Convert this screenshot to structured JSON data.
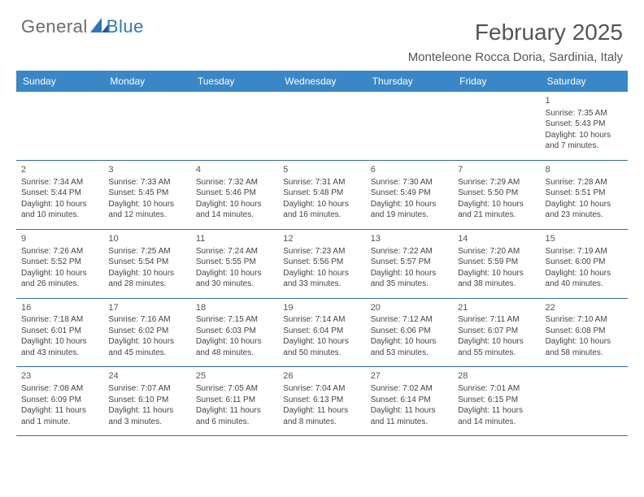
{
  "logo": {
    "part1": "General",
    "part2": "Blue"
  },
  "header": {
    "month": "February 2025",
    "location": "Monteleone Rocca Doria, Sardinia, Italy"
  },
  "weekdays": [
    "Sunday",
    "Monday",
    "Tuesday",
    "Wednesday",
    "Thursday",
    "Friday",
    "Saturday"
  ],
  "colors": {
    "header_bg": "#3a87c8",
    "row_border": "#3a6a9a",
    "text": "#444"
  },
  "calendar": {
    "type": "table",
    "rows": [
      [
        null,
        null,
        null,
        null,
        null,
        null,
        {
          "d": "1",
          "sr": "7:35 AM",
          "ss": "5:43 PM",
          "dl": "10 hours and 7 minutes."
        }
      ],
      [
        {
          "d": "2",
          "sr": "7:34 AM",
          "ss": "5:44 PM",
          "dl": "10 hours and 10 minutes."
        },
        {
          "d": "3",
          "sr": "7:33 AM",
          "ss": "5:45 PM",
          "dl": "10 hours and 12 minutes."
        },
        {
          "d": "4",
          "sr": "7:32 AM",
          "ss": "5:46 PM",
          "dl": "10 hours and 14 minutes."
        },
        {
          "d": "5",
          "sr": "7:31 AM",
          "ss": "5:48 PM",
          "dl": "10 hours and 16 minutes."
        },
        {
          "d": "6",
          "sr": "7:30 AM",
          "ss": "5:49 PM",
          "dl": "10 hours and 19 minutes."
        },
        {
          "d": "7",
          "sr": "7:29 AM",
          "ss": "5:50 PM",
          "dl": "10 hours and 21 minutes."
        },
        {
          "d": "8",
          "sr": "7:28 AM",
          "ss": "5:51 PM",
          "dl": "10 hours and 23 minutes."
        }
      ],
      [
        {
          "d": "9",
          "sr": "7:26 AM",
          "ss": "5:52 PM",
          "dl": "10 hours and 26 minutes."
        },
        {
          "d": "10",
          "sr": "7:25 AM",
          "ss": "5:54 PM",
          "dl": "10 hours and 28 minutes."
        },
        {
          "d": "11",
          "sr": "7:24 AM",
          "ss": "5:55 PM",
          "dl": "10 hours and 30 minutes."
        },
        {
          "d": "12",
          "sr": "7:23 AM",
          "ss": "5:56 PM",
          "dl": "10 hours and 33 minutes."
        },
        {
          "d": "13",
          "sr": "7:22 AM",
          "ss": "5:57 PM",
          "dl": "10 hours and 35 minutes."
        },
        {
          "d": "14",
          "sr": "7:20 AM",
          "ss": "5:59 PM",
          "dl": "10 hours and 38 minutes."
        },
        {
          "d": "15",
          "sr": "7:19 AM",
          "ss": "6:00 PM",
          "dl": "10 hours and 40 minutes."
        }
      ],
      [
        {
          "d": "16",
          "sr": "7:18 AM",
          "ss": "6:01 PM",
          "dl": "10 hours and 43 minutes."
        },
        {
          "d": "17",
          "sr": "7:16 AM",
          "ss": "6:02 PM",
          "dl": "10 hours and 45 minutes."
        },
        {
          "d": "18",
          "sr": "7:15 AM",
          "ss": "6:03 PM",
          "dl": "10 hours and 48 minutes."
        },
        {
          "d": "19",
          "sr": "7:14 AM",
          "ss": "6:04 PM",
          "dl": "10 hours and 50 minutes."
        },
        {
          "d": "20",
          "sr": "7:12 AM",
          "ss": "6:06 PM",
          "dl": "10 hours and 53 minutes."
        },
        {
          "d": "21",
          "sr": "7:11 AM",
          "ss": "6:07 PM",
          "dl": "10 hours and 55 minutes."
        },
        {
          "d": "22",
          "sr": "7:10 AM",
          "ss": "6:08 PM",
          "dl": "10 hours and 58 minutes."
        }
      ],
      [
        {
          "d": "23",
          "sr": "7:08 AM",
          "ss": "6:09 PM",
          "dl": "11 hours and 1 minute."
        },
        {
          "d": "24",
          "sr": "7:07 AM",
          "ss": "6:10 PM",
          "dl": "11 hours and 3 minutes."
        },
        {
          "d": "25",
          "sr": "7:05 AM",
          "ss": "6:11 PM",
          "dl": "11 hours and 6 minutes."
        },
        {
          "d": "26",
          "sr": "7:04 AM",
          "ss": "6:13 PM",
          "dl": "11 hours and 8 minutes."
        },
        {
          "d": "27",
          "sr": "7:02 AM",
          "ss": "6:14 PM",
          "dl": "11 hours and 11 minutes."
        },
        {
          "d": "28",
          "sr": "7:01 AM",
          "ss": "6:15 PM",
          "dl": "11 hours and 14 minutes."
        },
        null
      ]
    ]
  },
  "labels": {
    "sunrise": "Sunrise:",
    "sunset": "Sunset:",
    "daylight": "Daylight:"
  }
}
